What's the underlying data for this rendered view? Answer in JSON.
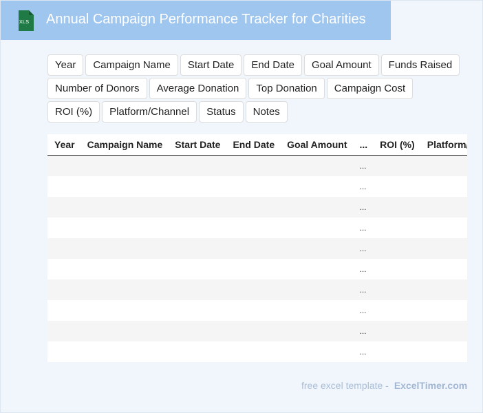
{
  "header": {
    "title": "Annual Campaign Performance Tracker for Charities",
    "icon_label": "XLS"
  },
  "tags": [
    "Year",
    "Campaign Name",
    "Start Date",
    "End Date",
    "Goal Amount",
    "Funds Raised",
    "Number of Donors",
    "Average Donation",
    "Top Donation",
    "Campaign Cost",
    "ROI (%)",
    "Platform/Channel",
    "Status",
    "Notes"
  ],
  "table": {
    "columns": [
      "Year",
      "Campaign Name",
      "Start Date",
      "End Date",
      "Goal Amount",
      "...",
      "ROI (%)",
      "Platform/Channel"
    ],
    "rows": [
      "...",
      "...",
      "...",
      "...",
      "...",
      "...",
      "...",
      "...",
      "...",
      "..."
    ]
  },
  "footer": {
    "text": "free excel template -",
    "site": "ExcelTimer.com"
  }
}
